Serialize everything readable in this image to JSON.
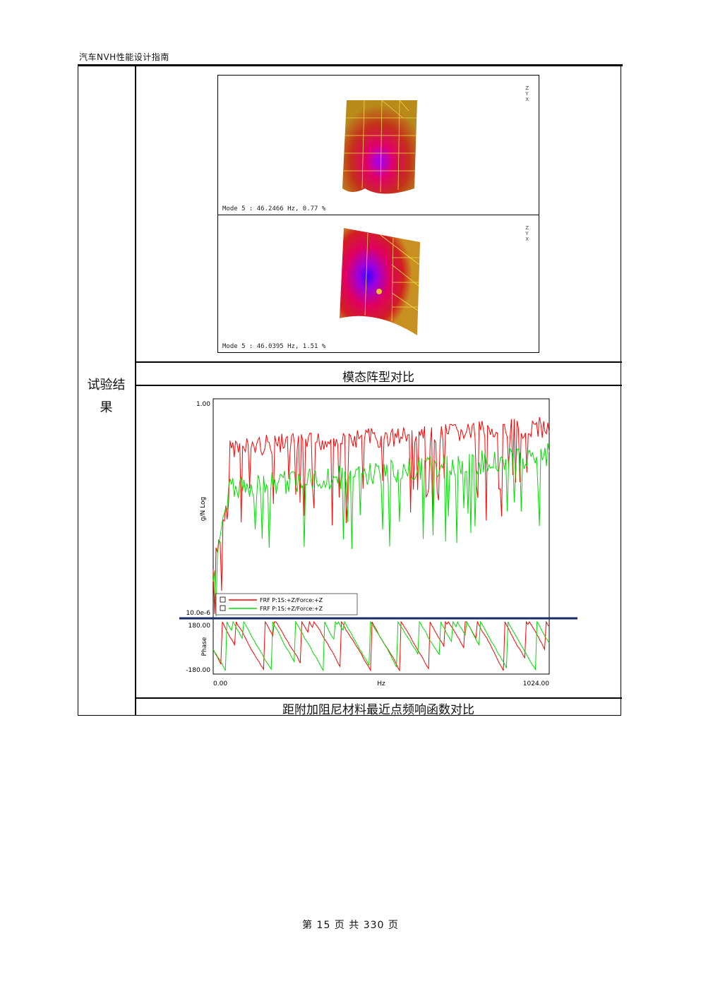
{
  "header": {
    "title": "汽车NVH性能设计指南"
  },
  "side_label": {
    "line1": "试验结",
    "line2": "果"
  },
  "modes": [
    {
      "label": "Mode  5 : 46.2466 Hz, 0.77 %"
    },
    {
      "label": "Mode  5 : 46.0395 Hz, 1.51 %"
    }
  ],
  "axis_triad": {
    "labels": [
      "X",
      "Y",
      "Z"
    ]
  },
  "captions": {
    "mode_compare": "模态阵型对比",
    "frf_compare": "距附加阻尼材料最近点频响函数对比"
  },
  "chart_data": {
    "type": "line",
    "magnitude_ylabel": "g/N Log",
    "phase_ylabel": "Phase",
    "xlabel": "Hz",
    "x_ticks": [
      "0.00",
      "1024.00"
    ],
    "magnitude_ticks": [
      "1.00",
      "10.0e-6"
    ],
    "phase_ticks": [
      "180.00",
      "-180.00"
    ],
    "xlim": [
      0,
      1024
    ],
    "legend": [
      {
        "name": "FRF P:1S:+Z/Force:+Z",
        "color": "#ff0000"
      },
      {
        "name": "FRF P:1S:+Z/Force:+Z",
        "color": "#00dd00"
      }
    ],
    "series_colors": [
      "#ff0000",
      "#00dd00"
    ]
  },
  "footer": {
    "text": "第 15 页 共 330 页"
  }
}
